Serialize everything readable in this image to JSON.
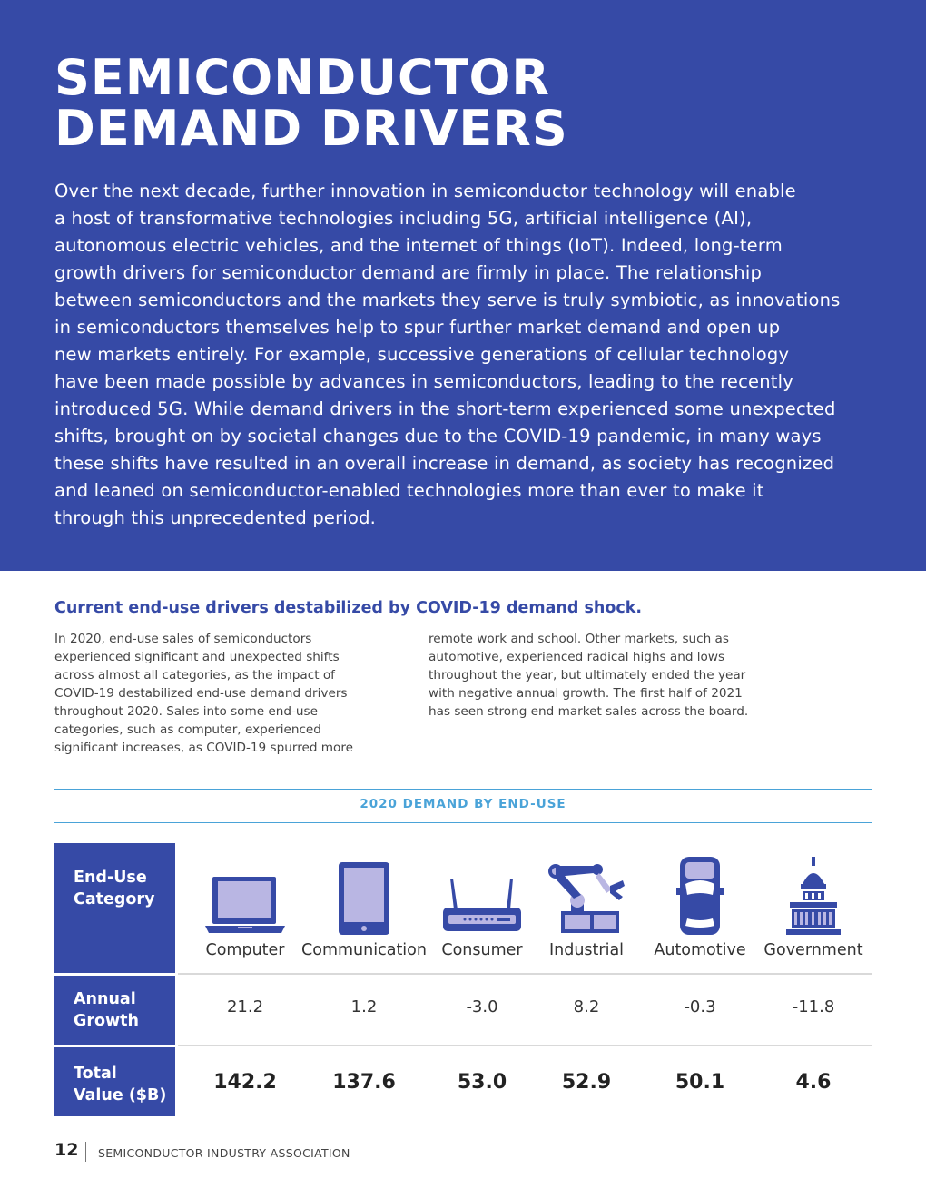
{
  "hero": {
    "title_line1": "SEMICONDUCTOR",
    "title_line2": "DEMAND DRIVERS",
    "body_lines": [
      "Over the next decade, further innovation in semiconductor technology will enable",
      "a host of transformative technologies including 5G, artificial intelligence (AI),",
      "autonomous electric vehicles, and the internet of things (IoT). Indeed, long-term",
      "growth drivers for semiconductor demand are firmly in place. The relationship",
      "between semiconductors and the markets they serve is truly symbiotic, as innovations",
      "in semiconductors themselves help to spur further market demand and open up",
      "new markets entirely. For example, successive generations of cellular technology",
      "have been made possible by advances in semiconductors, leading to the recently",
      "introduced 5G. While demand drivers in the short-term experienced some unexpected",
      "shifts, brought on by societal changes due to the COVID-19 pandemic, in many ways",
      "these shifts have resulted in an overall increase in demand, as society has recognized",
      "and leaned on semiconductor-enabled technologies more than ever to make it",
      "through this unprecedented period."
    ]
  },
  "section": {
    "title": "Current end-use drivers destabilized by COVID-19 demand shock.",
    "col1_lines": [
      "In 2020, end-use sales of semiconductors",
      "experienced significant and unexpected shifts",
      "across almost all categories, as the impact of",
      "COVID-19 destabilized end-use demand drivers",
      "throughout 2020. Sales into some end-use",
      "categories, such as computer, experienced",
      "significant increases, as COVID-19 spurred more"
    ],
    "col2_lines": [
      "remote work and school. Other markets, such as",
      "automotive, experienced radical highs and lows",
      "throughout the year, but ultimately ended the year",
      "with negative annual growth. The first half of 2021",
      "has seen strong end market sales across the board."
    ]
  },
  "table": {
    "title": "2020 DEMAND BY END-USE",
    "row_headers": {
      "category": [
        "End-Use",
        "Category"
      ],
      "growth": [
        "Annual",
        "Growth"
      ],
      "total": [
        "Total",
        "Value ($B)"
      ]
    },
    "columns": [
      {
        "category": "Computer",
        "icon": "laptop-icon",
        "growth": "21.2",
        "total": "142.2"
      },
      {
        "category": "Communication",
        "icon": "tablet-icon",
        "growth": "1.2",
        "total": "137.6"
      },
      {
        "category": "Consumer",
        "icon": "router-icon",
        "growth": "-3.0",
        "total": "53.0"
      },
      {
        "category": "Industrial",
        "icon": "robot-arm-icon",
        "growth": "8.2",
        "total": "52.9"
      },
      {
        "category": "Automotive",
        "icon": "car-icon",
        "growth": "-0.3",
        "total": "50.1"
      },
      {
        "category": "Government",
        "icon": "capitol-icon",
        "growth": "-11.8",
        "total": "4.6"
      }
    ],
    "colors": {
      "header_bg": "#364aa6",
      "icon_fill": "#b9b6e3",
      "rule": "#4aa3d8"
    }
  },
  "footer": {
    "page_number": "12",
    "publisher": "SEMICONDUCTOR INDUSTRY ASSOCIATION"
  }
}
